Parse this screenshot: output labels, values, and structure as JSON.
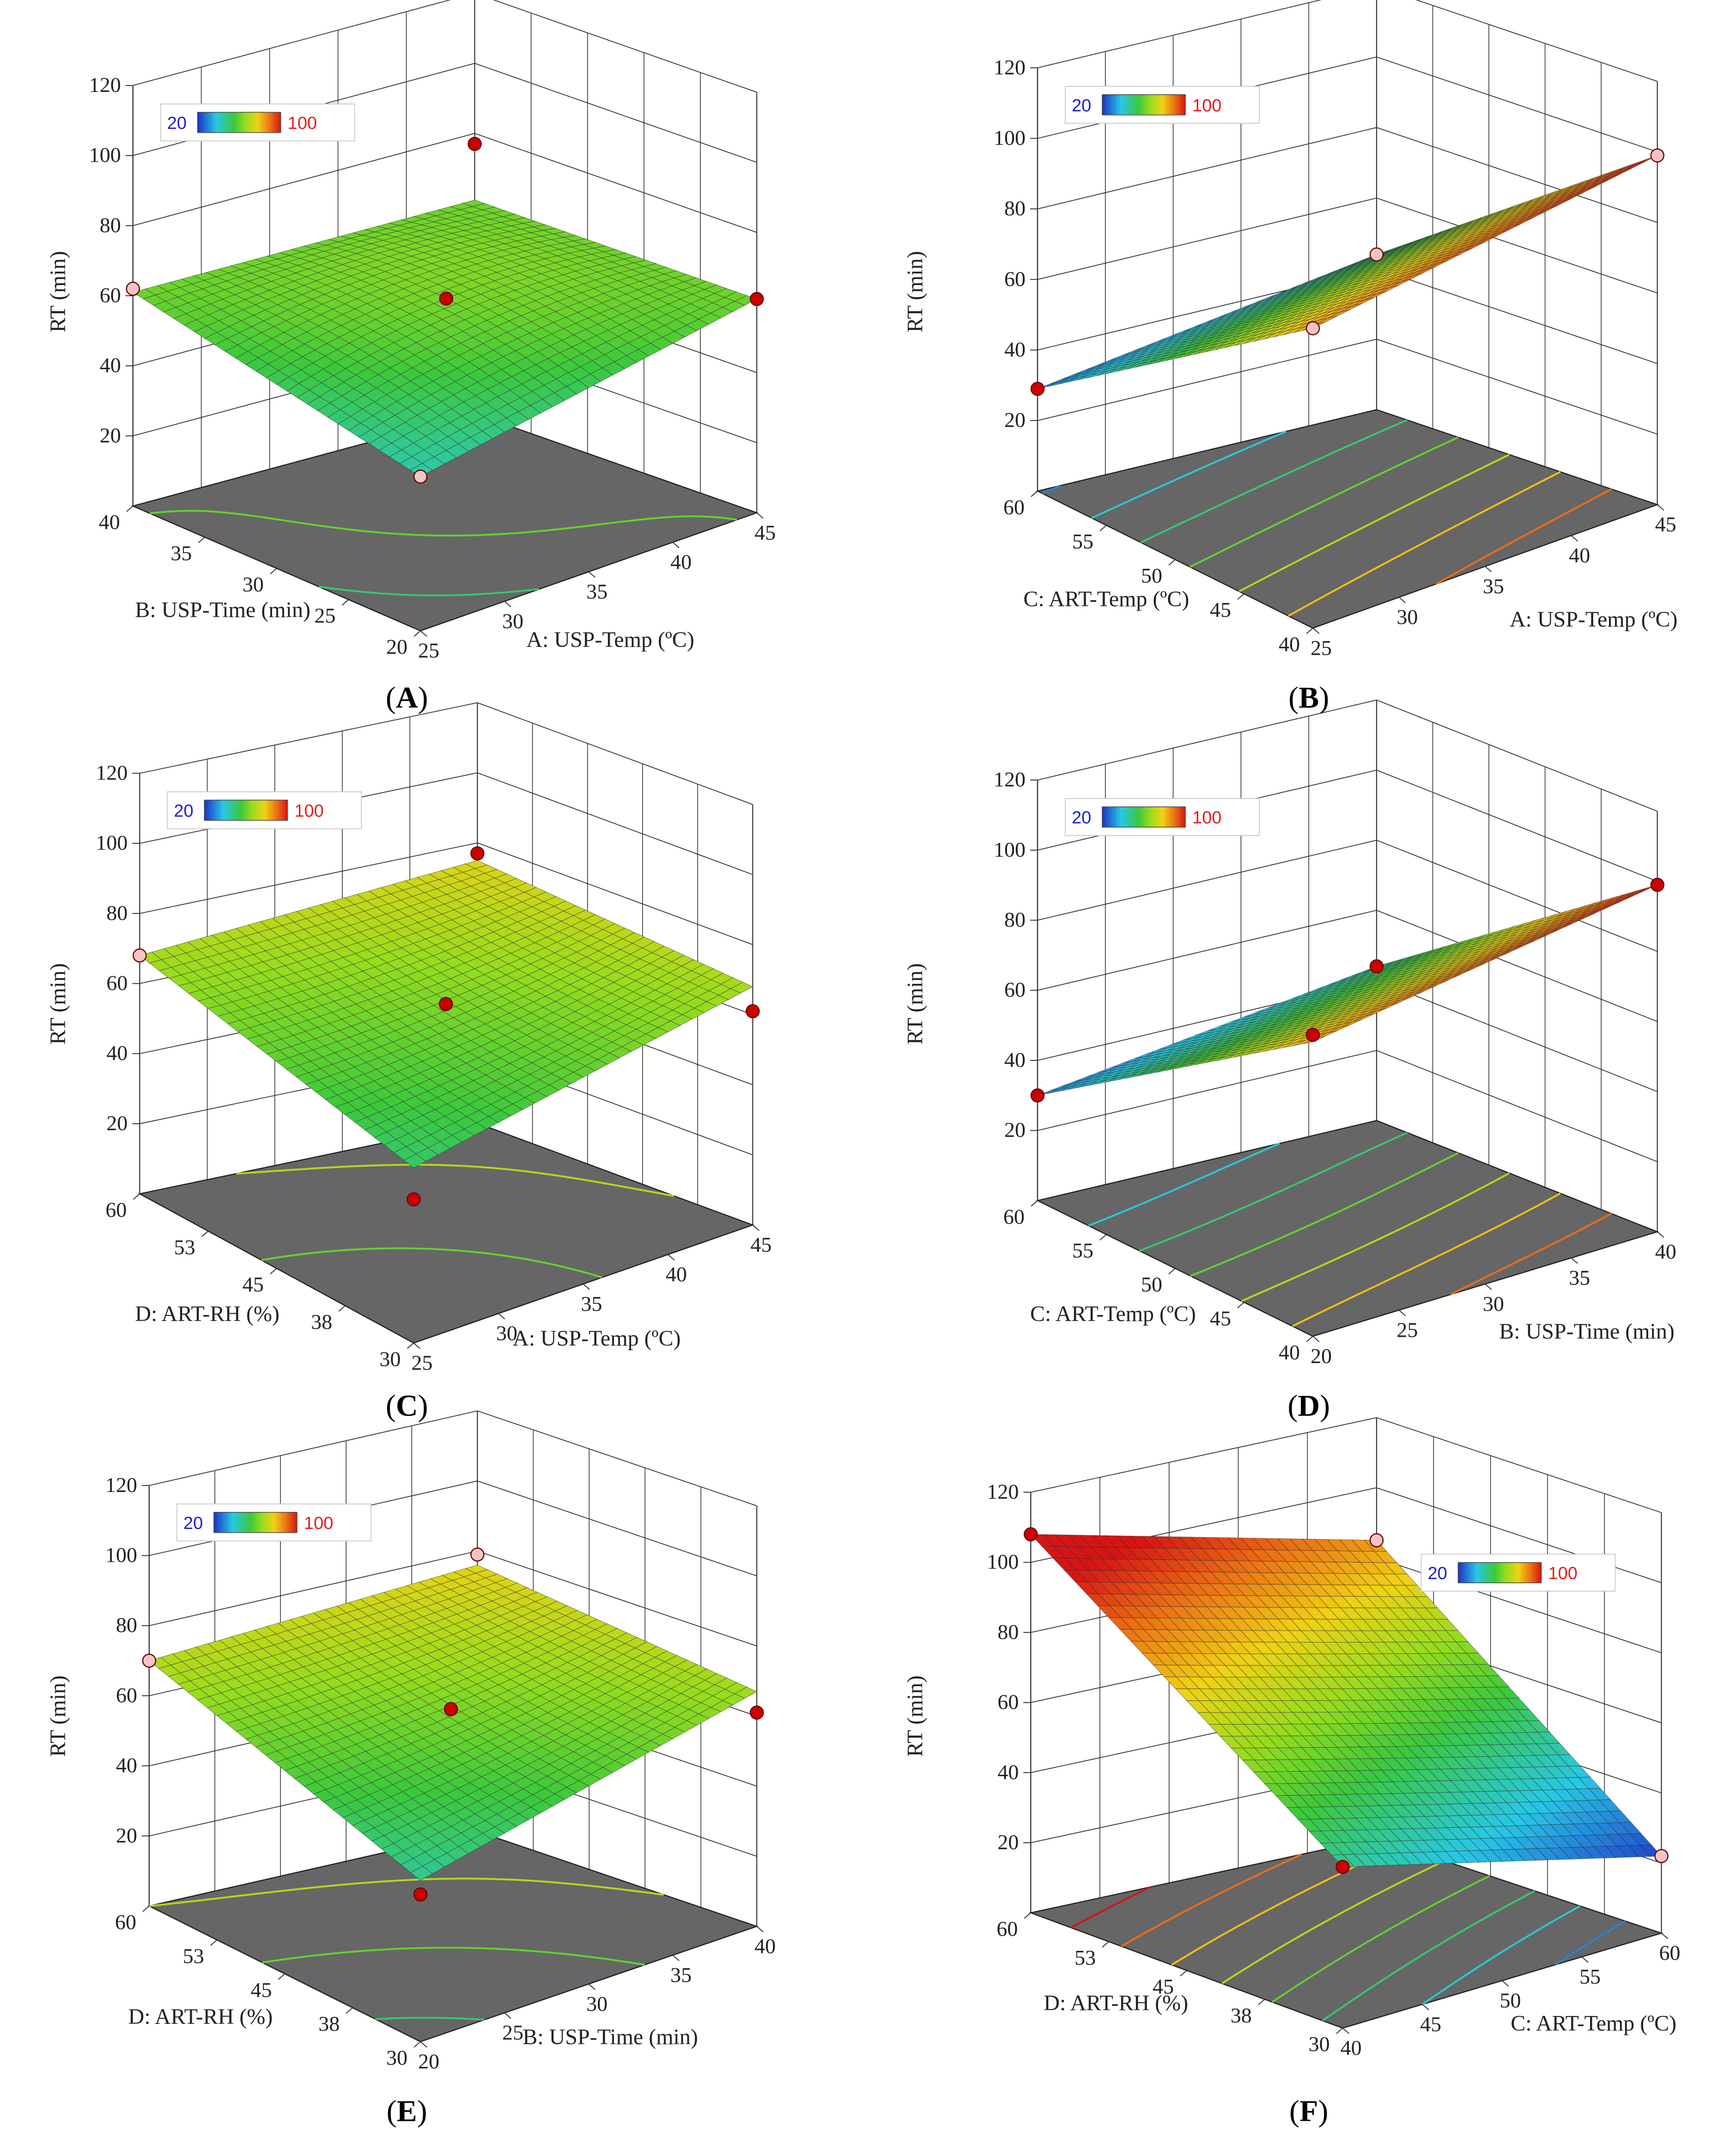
{
  "colors": {
    "low": "#1f1fcc",
    "high": "#e02020",
    "floor": "#666666",
    "grid": "#333333",
    "point": "#cc0000",
    "point_light": "#f4c4c4"
  },
  "legend": {
    "min_label": "20",
    "max_label": "100"
  },
  "chart_data": [
    {
      "id": "A",
      "type": "surface",
      "panel_label": "A",
      "zlabel": "RT (min)",
      "zlim": [
        0,
        120
      ],
      "zticks": [
        "20",
        "40",
        "60",
        "80",
        "100",
        "120"
      ],
      "x": {
        "label": "A: USP-Temp (ºC)",
        "ticks": [
          "25",
          "30",
          "35",
          "40",
          "45"
        ],
        "range": [
          25,
          45
        ]
      },
      "y": {
        "label": "B: USP-Time (min)",
        "ticks": [
          "20",
          "25",
          "30",
          "35",
          "40"
        ],
        "range": [
          20,
          40
        ]
      },
      "corners": {
        "x0y0": 44,
        "x1y0": 61,
        "x0y1": 61,
        "x1y1": 61
      },
      "center": 62,
      "design_points": [
        {
          "x": 0,
          "y": 0,
          "z": 44,
          "style": "light"
        },
        {
          "x": 1,
          "y": 0,
          "z": 61,
          "style": "dark"
        },
        {
          "x": 0,
          "y": 1,
          "z": 62,
          "style": "light"
        },
        {
          "x": 1,
          "y": 1,
          "z": 77,
          "style": "dark"
        },
        {
          "x": 0.5,
          "y": 0.5,
          "z": 62,
          "style": "dark"
        }
      ]
    },
    {
      "id": "B",
      "type": "surface",
      "panel_label": "B",
      "zlabel": "RT (min)",
      "zlim": [
        0,
        120
      ],
      "zticks": [
        "20",
        "40",
        "60",
        "80",
        "100",
        "120"
      ],
      "x": {
        "label": "A: USP-Temp (ºC)",
        "ticks": [
          "25",
          "30",
          "35",
          "40",
          "45"
        ],
        "range": [
          25,
          45
        ]
      },
      "y": {
        "label": "C: ART-Temp (ºC)",
        "ticks": [
          "40",
          "45",
          "50",
          "55",
          "60"
        ],
        "range": [
          40,
          60
        ]
      },
      "corners": {
        "x0y0": 85,
        "x1y0": 99,
        "x0y1": 29,
        "x1y1": 44
      },
      "center": 64,
      "design_points": [
        {
          "x": 0,
          "y": 0,
          "z": 85,
          "style": "light"
        },
        {
          "x": 1,
          "y": 0,
          "z": 99,
          "style": "light"
        },
        {
          "x": 0,
          "y": 1,
          "z": 29,
          "style": "dark"
        },
        {
          "x": 1,
          "y": 1,
          "z": 44,
          "style": "light"
        }
      ]
    },
    {
      "id": "C",
      "type": "surface",
      "panel_label": "C",
      "zlabel": "RT (min)",
      "zlim": [
        0,
        120
      ],
      "zticks": [
        "20",
        "40",
        "60",
        "80",
        "100",
        "120"
      ],
      "x": {
        "label": "A: USP-Temp (ºC)",
        "ticks": [
          "25",
          "30",
          "35",
          "40",
          "45"
        ],
        "range": [
          25,
          45
        ]
      },
      "y": {
        "label": "D: ART-RH (%)",
        "ticks": [
          "30",
          "38",
          "45",
          "53",
          "60"
        ],
        "range": [
          30,
          60
        ]
      },
      "corners": {
        "x0y0": 50,
        "x1y0": 68,
        "x0y1": 68,
        "x1y1": 75
      },
      "center": 63,
      "design_points": [
        {
          "x": 0,
          "y": 0,
          "z": 41,
          "style": "dark"
        },
        {
          "x": 1,
          "y": 0,
          "z": 61,
          "style": "dark"
        },
        {
          "x": 0,
          "y": 1,
          "z": 68,
          "style": "light"
        },
        {
          "x": 1,
          "y": 1,
          "z": 77,
          "style": "dark"
        },
        {
          "x": 0.5,
          "y": 0.5,
          "z": 62,
          "style": "dark"
        }
      ]
    },
    {
      "id": "D",
      "type": "surface",
      "panel_label": "D",
      "zlabel": "RT (min)",
      "zlim": [
        0,
        120
      ],
      "zticks": [
        "20",
        "40",
        "60",
        "80",
        "100",
        "120"
      ],
      "x": {
        "label": "B: USP-Time (min)",
        "ticks": [
          "20",
          "25",
          "30",
          "35",
          "40"
        ],
        "range": [
          20,
          40
        ]
      },
      "y": {
        "label": "C: ART-Temp (ºC)",
        "ticks": [
          "40",
          "45",
          "50",
          "55",
          "60"
        ],
        "range": [
          40,
          60
        ]
      },
      "corners": {
        "x0y0": 84,
        "x1y0": 99,
        "x0y1": 30,
        "x1y1": 44
      },
      "center": 63,
      "design_points": [
        {
          "x": 0,
          "y": 0,
          "z": 86,
          "style": "dark"
        },
        {
          "x": 1,
          "y": 0,
          "z": 99,
          "style": "dark"
        },
        {
          "x": 0,
          "y": 1,
          "z": 30,
          "style": "dark"
        },
        {
          "x": 1,
          "y": 1,
          "z": 44,
          "style": "dark"
        }
      ]
    },
    {
      "id": "E",
      "type": "surface",
      "panel_label": "E",
      "zlabel": "RT (min)",
      "zlim": [
        0,
        120
      ],
      "zticks": [
        "20",
        "40",
        "60",
        "80",
        "100",
        "120"
      ],
      "x": {
        "label": "B: USP-Time (min)",
        "ticks": [
          "20",
          "25",
          "30",
          "35",
          "40"
        ],
        "range": [
          20,
          40
        ]
      },
      "y": {
        "label": "D: ART-RH (%)",
        "ticks": [
          "30",
          "38",
          "45",
          "53",
          "60"
        ],
        "range": [
          30,
          60
        ]
      },
      "corners": {
        "x0y0": 46,
        "x1y0": 67,
        "x0y1": 70,
        "x1y1": 76
      },
      "center": 63,
      "design_points": [
        {
          "x": 0,
          "y": 0,
          "z": 42,
          "style": "dark"
        },
        {
          "x": 1,
          "y": 0,
          "z": 61,
          "style": "dark"
        },
        {
          "x": 0,
          "y": 1,
          "z": 70,
          "style": "light"
        },
        {
          "x": 1,
          "y": 1,
          "z": 79,
          "style": "light"
        },
        {
          "x": 0.5,
          "y": 0.5,
          "z": 62,
          "style": "dark"
        }
      ]
    },
    {
      "id": "F",
      "type": "surface",
      "panel_label": "F",
      "zlabel": "RT (min)",
      "zlim": [
        0,
        120
      ],
      "zticks": [
        "20",
        "40",
        "60",
        "80",
        "100",
        "120"
      ],
      "x": {
        "label": "C: ART-Temp (ºC)",
        "ticks": [
          "40",
          "45",
          "50",
          "55",
          "60"
        ],
        "range": [
          40,
          60
        ]
      },
      "y": {
        "label": "D: ART-RH (%)",
        "ticks": [
          "30",
          "38",
          "45",
          "53",
          "60"
        ],
        "range": [
          30,
          60
        ]
      },
      "corners": {
        "x0y0": 46,
        "x1y0": 22,
        "x0y1": 108,
        "x1y1": 85
      },
      "center": 65,
      "design_points": [
        {
          "x": 0,
          "y": 0,
          "z": 46,
          "style": "dark"
        },
        {
          "x": 1,
          "y": 0,
          "z": 22,
          "style": "light"
        },
        {
          "x": 0,
          "y": 1,
          "z": 108,
          "style": "dark"
        },
        {
          "x": 1,
          "y": 1,
          "z": 85,
          "style": "light"
        }
      ]
    }
  ]
}
